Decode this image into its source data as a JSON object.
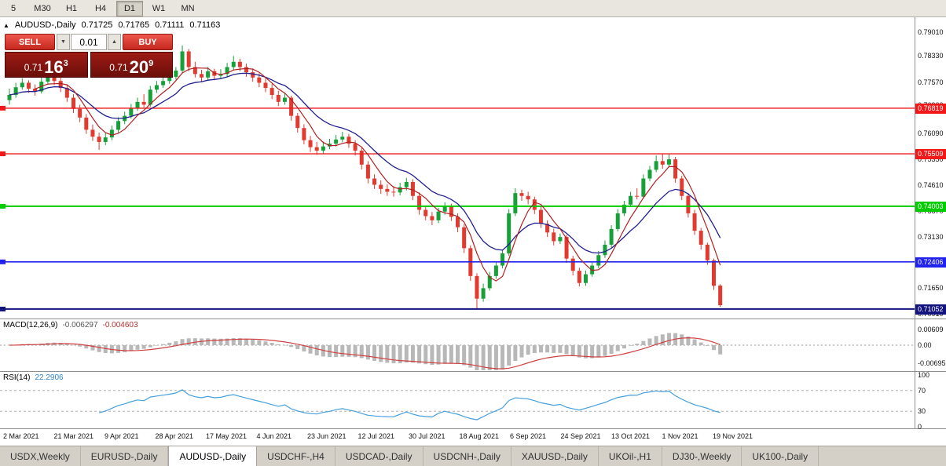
{
  "toolbar": {
    "timeframes": [
      {
        "label": "5",
        "active": false
      },
      {
        "label": "M30",
        "active": false
      },
      {
        "label": "H1",
        "active": false
      },
      {
        "label": "H4",
        "active": false
      },
      {
        "label": "D1",
        "active": true
      },
      {
        "label": "W1",
        "active": false
      },
      {
        "label": "MN",
        "active": false
      }
    ]
  },
  "chart_header": {
    "collapse_icon": "▲",
    "title": "AUDUSD-,Daily",
    "open": "0.71725",
    "high": "0.71765",
    "low": "0.71111",
    "close": "0.71163"
  },
  "one_click": {
    "sell_label": "SELL",
    "buy_label": "BUY",
    "volume": "0.01",
    "vol_down_icon": "▼",
    "vol_up_icon": "▲",
    "bid": {
      "prefix": "0.71",
      "big": "16",
      "sup": "3"
    },
    "ask": {
      "prefix": "0.71",
      "big": "20",
      "sup": "9"
    }
  },
  "price_axis": [
    0.7901,
    0.7833,
    0.7757,
    0.769,
    0.7609,
    0.7535,
    0.7461,
    0.7387,
    0.7313,
    0.724,
    0.7165,
    0.7091
  ],
  "hlines": [
    {
      "price": 0.76819,
      "label": "0.76819",
      "color": "#f01818",
      "width": 1.4
    },
    {
      "price": 0.75509,
      "label": "0.75509",
      "color": "#f01818",
      "width": 1.4
    },
    {
      "price": 0.74003,
      "label": "0.74003",
      "color": "#00cc00",
      "width": 2
    },
    {
      "price": 0.72406,
      "label": "0.72406",
      "color": "#2222ee",
      "width": 1.6
    },
    {
      "price": 0.71052,
      "label": "0.71052",
      "color": "#13137e",
      "width": 2
    }
  ],
  "macd": {
    "name": "MACD(12,26,9)",
    "value_main": "-0.006297",
    "value_signal": "-0.004603",
    "scale": [
      "0.00609",
      "0.00",
      "-0.00695"
    ]
  },
  "rsi": {
    "name": "RSI(14)",
    "value": "22.2906",
    "scale": [
      100,
      70,
      30,
      0
    ],
    "levels": [
      70,
      30
    ]
  },
  "dates": [
    "2 Mar 2021",
    "21 Mar 2021",
    "9 Apr 2021",
    "28 Apr 2021",
    "17 May 2021",
    "4 Jun 2021",
    "23 Jun 2021",
    "12 Jul 2021",
    "30 Jul 2021",
    "18 Aug 2021",
    "6 Sep 2021",
    "24 Sep 2021",
    "13 Oct 2021",
    "1 Nov 2021",
    "19 Nov 2021"
  ],
  "tabs": [
    {
      "label": "USDX,Weekly",
      "active": false
    },
    {
      "label": "EURUSD-,Daily",
      "active": false
    },
    {
      "label": "AUDUSD-,Daily",
      "active": true
    },
    {
      "label": "USDCHF-,H4",
      "active": false
    },
    {
      "label": "USDCAD-,Daily",
      "active": false
    },
    {
      "label": "USDCNH-,Daily",
      "active": false
    },
    {
      "label": "XAUUSD-,Daily",
      "active": false
    },
    {
      "label": "UKOil-,H1",
      "active": false
    },
    {
      "label": "DJ30-,Weekly",
      "active": false
    },
    {
      "label": "UK100-,Daily",
      "active": false
    }
  ],
  "colors": {
    "up": "#18a038",
    "down": "#e23a2e",
    "ma_fast": "#b02020",
    "ma_slow": "#202090",
    "macd_hist": "#b8b8b8",
    "macd_signal": "#d04040",
    "rsi_line": "#45a0dc",
    "level_dash": "#b0b0b0"
  },
  "chart_data": {
    "type": "candlestick",
    "symbol": "AUDUSD-",
    "timeframe": "Daily",
    "price_range": [
      0.7078,
      0.7943
    ],
    "overlays": [
      {
        "name": "ma-fast",
        "type": "sma",
        "period": 5
      },
      {
        "name": "ma-slow",
        "type": "ema",
        "period": 12
      }
    ],
    "indicators": [
      {
        "name": "MACD",
        "params": [
          12,
          26,
          9
        ],
        "last_main": -0.006297,
        "last_signal": -0.004603
      },
      {
        "name": "RSI",
        "params": [
          14
        ],
        "last": 22.2906
      }
    ],
    "candles": [
      [
        0.7705,
        0.7738,
        0.7692,
        0.772
      ],
      [
        0.772,
        0.7755,
        0.7712,
        0.7742
      ],
      [
        0.7742,
        0.7768,
        0.7735,
        0.7755
      ],
      [
        0.7755,
        0.7762,
        0.7726,
        0.7738
      ],
      [
        0.7738,
        0.775,
        0.7718,
        0.773
      ],
      [
        0.773,
        0.777,
        0.7724,
        0.7758
      ],
      [
        0.7758,
        0.7788,
        0.775,
        0.7775
      ],
      [
        0.7775,
        0.7785,
        0.7748,
        0.776
      ],
      [
        0.776,
        0.7772,
        0.7728,
        0.774
      ],
      [
        0.774,
        0.7748,
        0.77,
        0.7712
      ],
      [
        0.7712,
        0.7722,
        0.7668,
        0.768
      ],
      [
        0.768,
        0.7692,
        0.7642,
        0.7655
      ],
      [
        0.7655,
        0.7665,
        0.7608,
        0.762
      ],
      [
        0.762,
        0.7635,
        0.7588,
        0.76
      ],
      [
        0.76,
        0.7612,
        0.7562,
        0.7585
      ],
      [
        0.7585,
        0.761,
        0.7576,
        0.7598
      ],
      [
        0.7598,
        0.7632,
        0.759,
        0.762
      ],
      [
        0.762,
        0.7656,
        0.7612,
        0.7645
      ],
      [
        0.7645,
        0.7672,
        0.7636,
        0.766
      ],
      [
        0.766,
        0.7694,
        0.7652,
        0.7682
      ],
      [
        0.7682,
        0.7712,
        0.7674,
        0.77
      ],
      [
        0.77,
        0.7722,
        0.7684,
        0.7692
      ],
      [
        0.7692,
        0.7746,
        0.7686,
        0.7735
      ],
      [
        0.7735,
        0.776,
        0.7726,
        0.7748
      ],
      [
        0.7748,
        0.7772,
        0.774,
        0.776
      ],
      [
        0.776,
        0.7784,
        0.7752,
        0.7772
      ],
      [
        0.7772,
        0.78,
        0.7764,
        0.779
      ],
      [
        0.779,
        0.7862,
        0.7782,
        0.7845
      ],
      [
        0.7845,
        0.7852,
        0.7788,
        0.78
      ],
      [
        0.78,
        0.7815,
        0.777,
        0.778
      ],
      [
        0.778,
        0.7792,
        0.7758,
        0.777
      ],
      [
        0.777,
        0.78,
        0.7762,
        0.7788
      ],
      [
        0.7788,
        0.7795,
        0.7762,
        0.7775
      ],
      [
        0.7775,
        0.7794,
        0.7766,
        0.778
      ],
      [
        0.778,
        0.7812,
        0.7772,
        0.78
      ],
      [
        0.78,
        0.7832,
        0.7792,
        0.7815
      ],
      [
        0.7815,
        0.7824,
        0.7788,
        0.78
      ],
      [
        0.78,
        0.781,
        0.7772,
        0.7785
      ],
      [
        0.7785,
        0.7796,
        0.7758,
        0.777
      ],
      [
        0.777,
        0.7782,
        0.7742,
        0.7755
      ],
      [
        0.7755,
        0.7768,
        0.7728,
        0.774
      ],
      [
        0.774,
        0.7752,
        0.7708,
        0.772
      ],
      [
        0.772,
        0.7732,
        0.7688,
        0.77
      ],
      [
        0.77,
        0.7726,
        0.7692,
        0.7712
      ],
      [
        0.7712,
        0.7718,
        0.7646,
        0.766
      ],
      [
        0.766,
        0.7668,
        0.7612,
        0.7625
      ],
      [
        0.7625,
        0.7636,
        0.7578,
        0.759
      ],
      [
        0.759,
        0.7602,
        0.7556,
        0.757
      ],
      [
        0.757,
        0.7585,
        0.7548,
        0.756
      ],
      [
        0.756,
        0.7586,
        0.7552,
        0.7572
      ],
      [
        0.7572,
        0.7594,
        0.7564,
        0.758
      ],
      [
        0.758,
        0.7605,
        0.7572,
        0.7592
      ],
      [
        0.7592,
        0.7614,
        0.7584,
        0.76
      ],
      [
        0.76,
        0.7608,
        0.7568,
        0.758
      ],
      [
        0.758,
        0.759,
        0.7546,
        0.756
      ],
      [
        0.756,
        0.7568,
        0.7506,
        0.752
      ],
      [
        0.752,
        0.753,
        0.7466,
        0.748
      ],
      [
        0.748,
        0.7492,
        0.745,
        0.7462
      ],
      [
        0.7462,
        0.7475,
        0.7436,
        0.745
      ],
      [
        0.745,
        0.7464,
        0.743,
        0.7442
      ],
      [
        0.7442,
        0.7458,
        0.7428,
        0.744
      ],
      [
        0.744,
        0.7468,
        0.7432,
        0.7455
      ],
      [
        0.7455,
        0.7482,
        0.7446,
        0.747
      ],
      [
        0.747,
        0.7478,
        0.7418,
        0.743
      ],
      [
        0.743,
        0.744,
        0.7376,
        0.739
      ],
      [
        0.739,
        0.74,
        0.736,
        0.7372
      ],
      [
        0.7372,
        0.7384,
        0.7346,
        0.736
      ],
      [
        0.736,
        0.7396,
        0.7352,
        0.7385
      ],
      [
        0.7385,
        0.7412,
        0.7376,
        0.74
      ],
      [
        0.74,
        0.7408,
        0.7358,
        0.737
      ],
      [
        0.737,
        0.738,
        0.7326,
        0.734
      ],
      [
        0.734,
        0.7348,
        0.7266,
        0.728
      ],
      [
        0.728,
        0.7288,
        0.7186,
        0.72
      ],
      [
        0.72,
        0.7208,
        0.7106,
        0.7135
      ],
      [
        0.7135,
        0.7178,
        0.7126,
        0.7165
      ],
      [
        0.7165,
        0.7212,
        0.7158,
        0.72
      ],
      [
        0.72,
        0.7242,
        0.7192,
        0.723
      ],
      [
        0.723,
        0.7276,
        0.7222,
        0.7265
      ],
      [
        0.7265,
        0.7392,
        0.7258,
        0.738
      ],
      [
        0.738,
        0.7452,
        0.7372,
        0.7438
      ],
      [
        0.7438,
        0.7448,
        0.7416,
        0.743
      ],
      [
        0.743,
        0.7442,
        0.7406,
        0.742
      ],
      [
        0.742,
        0.7428,
        0.7378,
        0.739
      ],
      [
        0.739,
        0.74,
        0.7338,
        0.735
      ],
      [
        0.735,
        0.736,
        0.7312,
        0.7325
      ],
      [
        0.7325,
        0.7336,
        0.7288,
        0.73
      ],
      [
        0.73,
        0.7322,
        0.7292,
        0.7312
      ],
      [
        0.7312,
        0.7318,
        0.7238,
        0.725
      ],
      [
        0.725,
        0.7258,
        0.7202,
        0.7215
      ],
      [
        0.7215,
        0.7224,
        0.717,
        0.718
      ],
      [
        0.718,
        0.7216,
        0.7172,
        0.7205
      ],
      [
        0.7205,
        0.7242,
        0.7198,
        0.723
      ],
      [
        0.723,
        0.7272,
        0.7222,
        0.726
      ],
      [
        0.726,
        0.7302,
        0.7252,
        0.729
      ],
      [
        0.729,
        0.7346,
        0.7282,
        0.7335
      ],
      [
        0.7335,
        0.7392,
        0.7328,
        0.738
      ],
      [
        0.738,
        0.7416,
        0.7372,
        0.7405
      ],
      [
        0.7405,
        0.7442,
        0.7398,
        0.743
      ],
      [
        0.743,
        0.7452,
        0.742,
        0.7428
      ],
      [
        0.7428,
        0.7492,
        0.7422,
        0.748
      ],
      [
        0.748,
        0.7516,
        0.7472,
        0.7505
      ],
      [
        0.7505,
        0.7546,
        0.7498,
        0.753
      ],
      [
        0.753,
        0.7552,
        0.7508,
        0.752
      ],
      [
        0.752,
        0.7551,
        0.7512,
        0.7535
      ],
      [
        0.7535,
        0.7542,
        0.7468,
        0.748
      ],
      [
        0.748,
        0.7488,
        0.7418,
        0.743
      ],
      [
        0.743,
        0.7438,
        0.7368,
        0.738
      ],
      [
        0.738,
        0.739,
        0.7318,
        0.733
      ],
      [
        0.733,
        0.7338,
        0.7276,
        0.729
      ],
      [
        0.729,
        0.7296,
        0.7232,
        0.7245
      ],
      [
        0.7245,
        0.725,
        0.716,
        0.7172
      ],
      [
        0.71725,
        0.71765,
        0.71111,
        0.71163
      ]
    ]
  }
}
